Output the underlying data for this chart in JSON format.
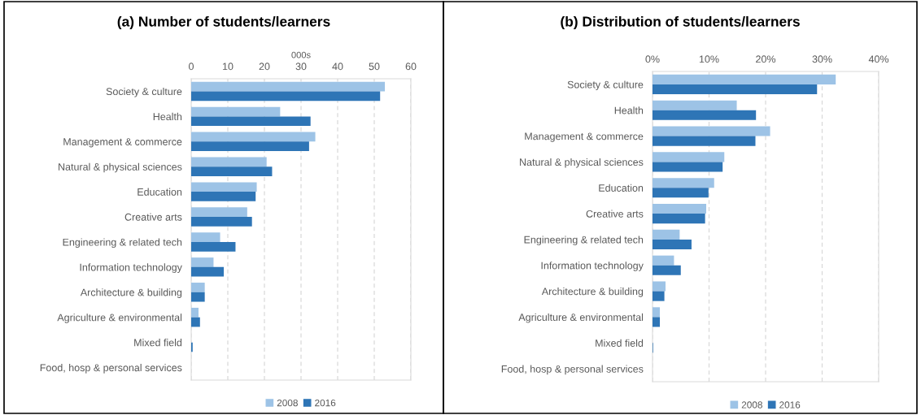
{
  "chart_data": [
    {
      "type": "bar",
      "orientation": "horizontal",
      "title": "(a) Number of students/learners",
      "xlabel": "000s",
      "categories": [
        "Society & culture",
        "Health",
        "Management & commerce",
        "Natural & physical sciences",
        "Education",
        "Creative arts",
        "Engineering & related tech",
        "Information technology",
        "Architecture & building",
        "Agriculture & environmental",
        "Mixed field",
        "Food, hosp & personal services"
      ],
      "series": [
        {
          "name": "2008",
          "color": "#9dc3e6",
          "values": [
            52.9,
            24.3,
            33.9,
            20.6,
            17.9,
            15.3,
            7.9,
            6.1,
            3.7,
            2.0,
            null,
            null
          ]
        },
        {
          "name": "2016",
          "color": "#2e75b6",
          "values": [
            51.6,
            32.6,
            32.2,
            22.1,
            17.6,
            16.6,
            12.1,
            8.9,
            3.7,
            2.4,
            0.4,
            null
          ]
        }
      ],
      "xlim": [
        0,
        60
      ],
      "xticks": [
        0,
        10,
        20,
        30,
        40,
        50,
        60
      ],
      "grid": "x",
      "legend": "bottom"
    },
    {
      "type": "bar",
      "orientation": "horizontal",
      "title": "(b) Distribution of students/learners",
      "categories": [
        "Society & culture",
        "Health",
        "Management & commerce",
        "Natural & physical sciences",
        "Education",
        "Creative arts",
        "Engineering & related tech",
        "Information technology",
        "Architecture & building",
        "Agriculture & environmental",
        "Mixed field",
        "Food, hosp & personal services"
      ],
      "series": [
        {
          "name": "2008",
          "color": "#9dc3e6",
          "values": [
            32.4,
            14.9,
            20.8,
            12.7,
            10.9,
            9.5,
            4.8,
            3.8,
            2.3,
            1.3,
            null,
            null
          ]
        },
        {
          "name": "2016",
          "color": "#2e75b6",
          "values": [
            29.1,
            18.3,
            18.2,
            12.4,
            9.9,
            9.3,
            6.9,
            5.0,
            2.1,
            1.3,
            0.1,
            null
          ]
        }
      ],
      "xlim": [
        0,
        40
      ],
      "xticks": [
        {
          "value": 0,
          "label": "0%"
        },
        {
          "value": 10,
          "label": "10%"
        },
        {
          "value": 20,
          "label": "20%"
        },
        {
          "value": 30,
          "label": "30%"
        },
        {
          "value": 40,
          "label": "40%"
        }
      ],
      "grid": "x",
      "legend": "bottom"
    }
  ]
}
